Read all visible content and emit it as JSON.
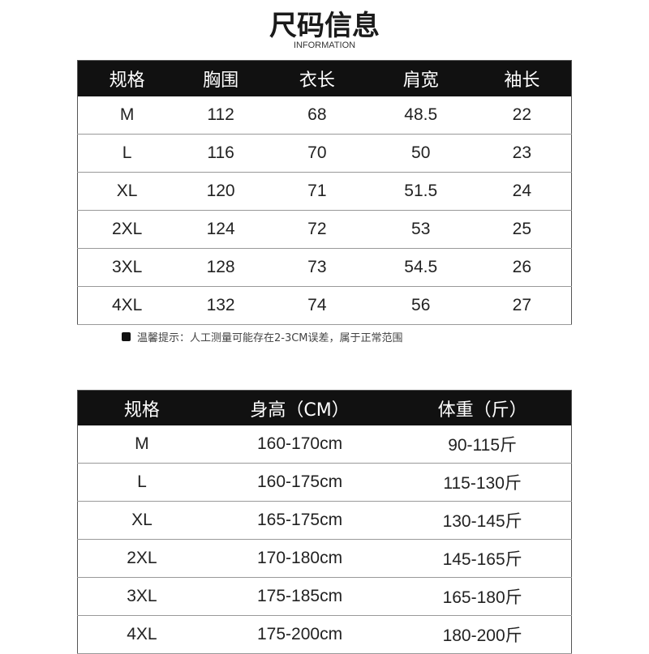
{
  "title": "尺码信息",
  "subtitle": "INFORMATION",
  "table1": {
    "headers": [
      "规格",
      "胸围",
      "衣长",
      "肩宽",
      "袖长"
    ],
    "rows": [
      [
        "M",
        "112",
        "68",
        "48.5",
        "22"
      ],
      [
        "L",
        "116",
        "70",
        "50",
        "23"
      ],
      [
        "XL",
        "120",
        "71",
        "51.5",
        "24"
      ],
      [
        "2XL",
        "124",
        "72",
        "53",
        "25"
      ],
      [
        "3XL",
        "128",
        "73",
        "54.5",
        "26"
      ],
      [
        "4XL",
        "132",
        "74",
        "56",
        "27"
      ]
    ]
  },
  "note": "温馨提示：人工测量可能存在2-3CM误差，属于正常范围",
  "table2": {
    "headers": [
      "规格",
      "身高（CM）",
      "体重（斤）"
    ],
    "rows": [
      [
        "M",
        "160-170cm",
        "90-115斤"
      ],
      [
        "L",
        "160-175cm",
        "115-130斤"
      ],
      [
        "XL",
        "165-175cm",
        "130-145斤"
      ],
      [
        "2XL",
        "170-180cm",
        "145-165斤"
      ],
      [
        "3XL",
        "175-185cm",
        "165-180斤"
      ],
      [
        "4XL",
        "175-200cm",
        "180-200斤"
      ]
    ]
  }
}
